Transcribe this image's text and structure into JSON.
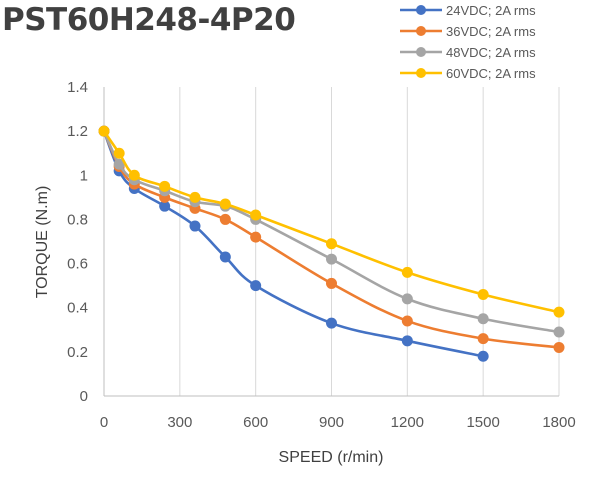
{
  "chart_data": {
    "type": "line",
    "title": "PST60H248-4P20",
    "xlabel": "SPEED (r/min)",
    "ylabel": "TORQUE (N.m)",
    "xlim": [
      0,
      1800
    ],
    "ylim": [
      0,
      1.4
    ],
    "xticks": [
      0,
      300,
      600,
      900,
      1200,
      1500,
      1800
    ],
    "yticks": [
      0,
      0.2,
      0.4,
      0.6,
      0.8,
      1,
      1.2,
      1.4
    ],
    "grid": "vertical",
    "legend_position": "top-right",
    "series": [
      {
        "name": "24VDC; 2A rms",
        "color": "#4472C4",
        "points": [
          [
            0,
            1.2
          ],
          [
            60,
            1.02
          ],
          [
            120,
            0.94
          ],
          [
            240,
            0.86
          ],
          [
            360,
            0.77
          ],
          [
            480,
            0.63
          ],
          [
            600,
            0.5
          ],
          [
            900,
            0.33
          ],
          [
            1200,
            0.25
          ],
          [
            1500,
            0.18
          ]
        ]
      },
      {
        "name": "36VDC; 2A rms",
        "color": "#ED7D31",
        "points": [
          [
            0,
            1.2
          ],
          [
            60,
            1.04
          ],
          [
            120,
            0.96
          ],
          [
            240,
            0.9
          ],
          [
            360,
            0.85
          ],
          [
            480,
            0.8
          ],
          [
            600,
            0.72
          ],
          [
            900,
            0.51
          ],
          [
            1200,
            0.34
          ],
          [
            1500,
            0.26
          ],
          [
            1800,
            0.22
          ]
        ]
      },
      {
        "name": "48VDC; 2A rms",
        "color": "#A5A5A5",
        "points": [
          [
            0,
            1.2
          ],
          [
            60,
            1.05
          ],
          [
            120,
            0.98
          ],
          [
            240,
            0.93
          ],
          [
            360,
            0.88
          ],
          [
            480,
            0.86
          ],
          [
            600,
            0.8
          ],
          [
            900,
            0.62
          ],
          [
            1200,
            0.44
          ],
          [
            1500,
            0.35
          ],
          [
            1800,
            0.29
          ]
        ]
      },
      {
        "name": "60VDC; 2A rms",
        "color": "#FFC000",
        "points": [
          [
            0,
            1.2
          ],
          [
            60,
            1.1
          ],
          [
            120,
            1.0
          ],
          [
            240,
            0.95
          ],
          [
            360,
            0.9
          ],
          [
            480,
            0.87
          ],
          [
            600,
            0.82
          ],
          [
            900,
            0.69
          ],
          [
            1200,
            0.56
          ],
          [
            1500,
            0.46
          ],
          [
            1800,
            0.38
          ]
        ]
      }
    ]
  }
}
